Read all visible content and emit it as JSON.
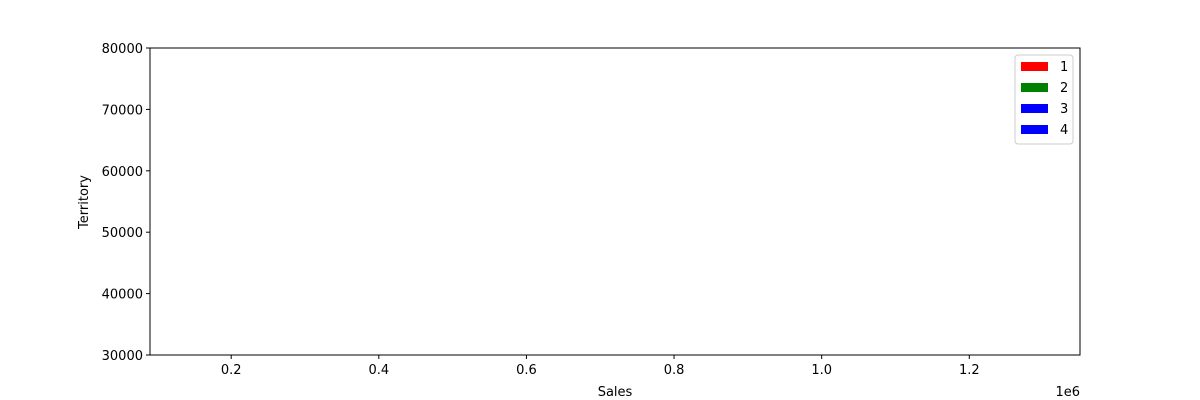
{
  "chart_data": {
    "type": "bar",
    "orientation": "horizontal",
    "title": "",
    "xlabel": "Sales",
    "ylabel": "Territory",
    "x_offset_label": "1e6",
    "xlim": [
      90000,
      1350000
    ],
    "ylim": [
      30000,
      80000
    ],
    "x_ticks": [
      {
        "value": 200000,
        "label": "0.2"
      },
      {
        "value": 400000,
        "label": "0.4"
      },
      {
        "value": 600000,
        "label": "0.6"
      },
      {
        "value": 800000,
        "label": "0.8"
      },
      {
        "value": 1000000,
        "label": "1.0"
      },
      {
        "value": 1200000,
        "label": "1.2"
      }
    ],
    "y_ticks": [
      {
        "value": 30000,
        "label": "30000"
      },
      {
        "value": 40000,
        "label": "40000"
      },
      {
        "value": 50000,
        "label": "50000"
      },
      {
        "value": 60000,
        "label": "60000"
      },
      {
        "value": 70000,
        "label": "70000"
      },
      {
        "value": 80000,
        "label": "80000"
      }
    ],
    "series": [
      {
        "name": "1",
        "color": "#ff0000",
        "values": []
      },
      {
        "name": "2",
        "color": "#008000",
        "values": []
      },
      {
        "name": "3",
        "color": "#0000ff",
        "values": []
      },
      {
        "name": "4",
        "color": "#0000ff",
        "values": []
      }
    ],
    "grid": false,
    "legend_position": "top-right"
  }
}
